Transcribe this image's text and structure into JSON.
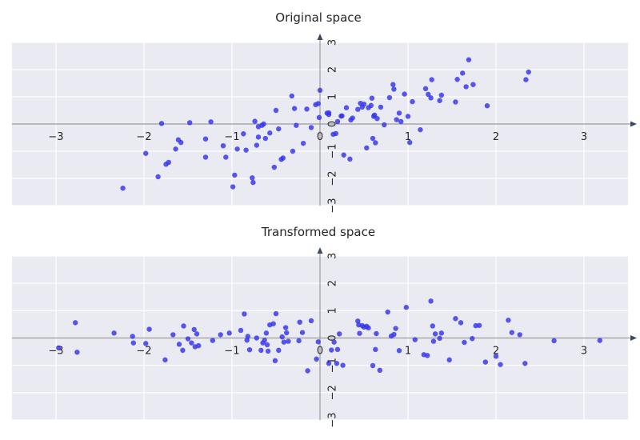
{
  "chart_data": [
    {
      "type": "scatter",
      "title": "Original space",
      "xlim": [
        -3.5,
        3.5
      ],
      "ylim": [
        -3,
        3
      ],
      "x_ticks": [
        "−3",
        "−2",
        "−1",
        "0",
        "1",
        "2",
        "3"
      ],
      "y_ticks": [
        "−3",
        "−2",
        "−1",
        "0",
        "1",
        "2",
        "3"
      ],
      "grid": true,
      "point_color": "#3333ee",
      "points": [
        [
          -2.24,
          -2.36
        ],
        [
          -1.98,
          -1.08
        ],
        [
          -1.84,
          -1.94
        ],
        [
          -1.75,
          -1.48
        ],
        [
          -1.72,
          -1.41
        ],
        [
          -1.8,
          0.02
        ],
        [
          -1.64,
          -0.92
        ],
        [
          -1.61,
          -0.58
        ],
        [
          -1.58,
          -0.68
        ],
        [
          -1.48,
          0.05
        ],
        [
          -1.3,
          -0.55
        ],
        [
          -1.24,
          0.08
        ],
        [
          -1.3,
          -1.22
        ],
        [
          -1.1,
          -0.8
        ],
        [
          -1.07,
          -1.22
        ],
        [
          -0.97,
          -1.88
        ],
        [
          -0.99,
          -2.31
        ],
        [
          -0.94,
          -0.92
        ],
        [
          -0.87,
          -0.36
        ],
        [
          -0.84,
          -0.96
        ],
        [
          -0.77,
          -1.98
        ],
        [
          -0.76,
          -2.15
        ],
        [
          -0.74,
          0.1
        ],
        [
          -0.72,
          -0.78
        ],
        [
          -0.7,
          -0.48
        ],
        [
          -0.66,
          -0.05
        ],
        [
          -0.64,
          0.0
        ],
        [
          -0.62,
          -0.53
        ],
        [
          -0.57,
          -0.33
        ],
        [
          -0.52,
          -1.59
        ],
        [
          -0.47,
          -0.18
        ],
        [
          -0.42,
          -1.25
        ],
        [
          -0.44,
          -1.3
        ],
        [
          -0.31,
          -1.0
        ],
        [
          -0.29,
          0.57
        ],
        [
          -0.27,
          -0.05
        ],
        [
          -0.19,
          -0.71
        ],
        [
          -0.32,
          1.03
        ],
        [
          -0.1,
          -0.13
        ],
        [
          -0.05,
          0.71
        ],
        [
          -0.02,
          0.75
        ],
        [
          -0.01,
          0.24
        ],
        [
          0.0,
          1.24
        ],
        [
          0.08,
          0.4
        ],
        [
          0.1,
          0.41
        ],
        [
          0.15,
          -0.38
        ],
        [
          0.2,
          0.09
        ],
        [
          0.24,
          0.29
        ],
        [
          0.27,
          -1.14
        ],
        [
          0.3,
          0.6
        ],
        [
          0.34,
          -1.29
        ],
        [
          0.37,
          0.22
        ],
        [
          0.43,
          0.54
        ],
        [
          0.46,
          0.76
        ],
        [
          0.5,
          0.73
        ],
        [
          0.53,
          -0.88
        ],
        [
          0.58,
          0.68
        ],
        [
          0.59,
          0.95
        ],
        [
          0.61,
          0.28
        ],
        [
          0.62,
          0.33
        ],
        [
          0.6,
          -0.53
        ],
        [
          0.63,
          -0.69
        ],
        [
          0.69,
          0.62
        ],
        [
          0.73,
          -0.03
        ],
        [
          0.79,
          0.97
        ],
        [
          0.83,
          1.45
        ],
        [
          0.84,
          1.28
        ],
        [
          0.87,
          0.16
        ],
        [
          0.92,
          0.09
        ],
        [
          0.96,
          1.1
        ],
        [
          1.0,
          0.28
        ],
        [
          1.02,
          -0.68
        ],
        [
          1.05,
          0.82
        ],
        [
          1.14,
          -0.21
        ],
        [
          1.2,
          1.3
        ],
        [
          1.23,
          1.09
        ],
        [
          1.26,
          0.96
        ],
        [
          1.27,
          1.63
        ],
        [
          1.36,
          0.86
        ],
        [
          1.38,
          1.06
        ],
        [
          1.54,
          0.81
        ],
        [
          1.56,
          1.64
        ],
        [
          1.62,
          1.87
        ],
        [
          1.66,
          1.37
        ],
        [
          1.69,
          2.36
        ],
        [
          1.74,
          1.45
        ],
        [
          1.9,
          0.67
        ],
        [
          2.34,
          1.63
        ],
        [
          2.37,
          1.91
        ],
        [
          -0.5,
          0.5
        ],
        [
          0.55,
          0.6
        ],
        [
          0.9,
          0.4
        ],
        [
          0.48,
          0.62
        ],
        [
          0.35,
          0.15
        ],
        [
          -0.7,
          -0.1
        ],
        [
          0.25,
          0.3
        ],
        [
          0.1,
          0.35
        ],
        [
          -0.15,
          0.55
        ],
        [
          0.65,
          0.2
        ],
        [
          0.18,
          -0.35
        ]
      ]
    },
    {
      "type": "scatter",
      "title": "Transformed space",
      "xlim": [
        -3.5,
        3.5
      ],
      "ylim": [
        -3,
        3
      ],
      "x_ticks": [
        "−3",
        "−2",
        "−1",
        "0",
        "1",
        "2",
        "3"
      ],
      "y_ticks": [
        "−3",
        "−2",
        "−1",
        "0",
        "1",
        "2",
        "3"
      ],
      "grid": true,
      "point_color": "#3333ee",
      "points": [
        [
          -2.97,
          -0.36
        ],
        [
          -2.78,
          0.56
        ],
        [
          -2.76,
          -0.52
        ],
        [
          -2.34,
          0.18
        ],
        [
          -2.13,
          0.06
        ],
        [
          -2.12,
          -0.18
        ],
        [
          -1.98,
          -0.2
        ],
        [
          -1.94,
          0.32
        ],
        [
          -1.76,
          -0.8
        ],
        [
          -1.67,
          0.12
        ],
        [
          -1.6,
          -0.23
        ],
        [
          -1.56,
          -0.45
        ],
        [
          -1.55,
          0.44
        ],
        [
          -1.5,
          -0.03
        ],
        [
          -1.46,
          -0.18
        ],
        [
          -1.43,
          0.31
        ],
        [
          -1.42,
          -0.32
        ],
        [
          -1.4,
          0.15
        ],
        [
          -1.38,
          -0.28
        ],
        [
          -1.22,
          -0.09
        ],
        [
          -1.13,
          0.12
        ],
        [
          -1.03,
          0.18
        ],
        [
          -0.9,
          0.28
        ],
        [
          -0.86,
          0.88
        ],
        [
          -0.83,
          -0.08
        ],
        [
          -0.82,
          0.06
        ],
        [
          -0.8,
          -0.43
        ],
        [
          -0.72,
          0.0
        ],
        [
          -0.67,
          -0.45
        ],
        [
          -0.65,
          -0.18
        ],
        [
          -0.63,
          -0.08
        ],
        [
          -0.61,
          0.18
        ],
        [
          -0.6,
          -0.25
        ],
        [
          -0.59,
          -0.48
        ],
        [
          -0.57,
          0.48
        ],
        [
          -0.53,
          0.52
        ],
        [
          -0.51,
          -0.83
        ],
        [
          -0.5,
          0.89
        ],
        [
          -0.47,
          -0.45
        ],
        [
          -0.43,
          0.04
        ],
        [
          -0.41,
          -0.15
        ],
        [
          -0.39,
          0.38
        ],
        [
          -0.38,
          0.19
        ],
        [
          -0.36,
          -0.12
        ],
        [
          -0.24,
          -0.1
        ],
        [
          -0.23,
          0.58
        ],
        [
          -0.2,
          0.2
        ],
        [
          -0.14,
          -1.2
        ],
        [
          -0.1,
          0.63
        ],
        [
          -0.04,
          -0.77
        ],
        [
          -0.02,
          -0.14
        ],
        [
          0.1,
          -0.93
        ],
        [
          0.13,
          -0.44
        ],
        [
          0.16,
          -0.15
        ],
        [
          0.19,
          -0.93
        ],
        [
          0.2,
          -0.42
        ],
        [
          0.22,
          0.15
        ],
        [
          0.26,
          -1.0
        ],
        [
          0.43,
          0.62
        ],
        [
          0.44,
          0.48
        ],
        [
          0.45,
          0.17
        ],
        [
          0.48,
          0.45
        ],
        [
          0.5,
          0.4
        ],
        [
          0.53,
          0.43
        ],
        [
          0.55,
          0.37
        ],
        [
          0.6,
          -1.01
        ],
        [
          0.63,
          -0.42
        ],
        [
          0.64,
          0.16
        ],
        [
          0.68,
          -1.18
        ],
        [
          0.77,
          0.95
        ],
        [
          0.81,
          0.07
        ],
        [
          0.84,
          0.13
        ],
        [
          0.86,
          0.35
        ],
        [
          0.9,
          -0.46
        ],
        [
          0.98,
          1.12
        ],
        [
          1.08,
          -0.06
        ],
        [
          1.18,
          -0.61
        ],
        [
          1.22,
          -0.64
        ],
        [
          1.26,
          1.35
        ],
        [
          1.28,
          0.44
        ],
        [
          1.29,
          -0.12
        ],
        [
          1.31,
          0.15
        ],
        [
          1.36,
          -0.01
        ],
        [
          1.38,
          0.18
        ],
        [
          1.47,
          -0.8
        ],
        [
          1.54,
          0.71
        ],
        [
          1.6,
          0.56
        ],
        [
          1.64,
          -0.16
        ],
        [
          1.73,
          -0.02
        ],
        [
          1.77,
          0.45
        ],
        [
          1.81,
          0.46
        ],
        [
          1.88,
          -0.88
        ],
        [
          2.0,
          -0.67
        ],
        [
          2.05,
          -0.97
        ],
        [
          2.14,
          0.65
        ],
        [
          2.18,
          0.2
        ],
        [
          2.27,
          0.12
        ],
        [
          2.33,
          -0.93
        ],
        [
          2.66,
          -0.1
        ],
        [
          3.18,
          -0.09
        ]
      ]
    }
  ]
}
